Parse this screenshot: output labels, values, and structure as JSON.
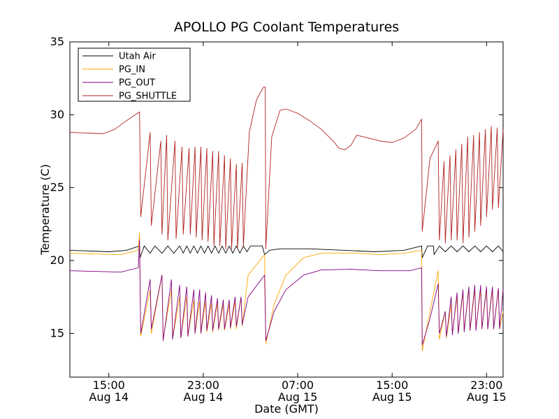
{
  "chart_data": {
    "type": "line",
    "title": "APOLLO PG Coolant Temperatures",
    "xlabel": "Date (GMT)",
    "ylabel": "Temperature (C)",
    "x_units": "hours since Aug 14 00:00 GMT",
    "xlim": [
      11.7,
      48.4
    ],
    "ylim": [
      12,
      35
    ],
    "yticks": [
      15,
      20,
      25,
      30,
      35
    ],
    "xticks": [
      {
        "x": 15,
        "time": "15:00",
        "date": "Aug 14"
      },
      {
        "x": 23,
        "time": "23:00",
        "date": "Aug 14"
      },
      {
        "x": 31,
        "time": "07:00",
        "date": "Aug 15"
      },
      {
        "x": 39,
        "time": "15:00",
        "date": "Aug 15"
      },
      {
        "x": 47,
        "time": "23:00",
        "date": "Aug 15"
      }
    ],
    "grid": false,
    "legend_position": "upper-left",
    "series": [
      {
        "name": "Utah Air",
        "color": "#000000",
        "points": [
          [
            11.7,
            20.7
          ],
          [
            13.5,
            20.65
          ],
          [
            15,
            20.6
          ],
          [
            16.5,
            20.7
          ],
          [
            17.6,
            21.0
          ],
          [
            17.65,
            20.2
          ],
          [
            18.0,
            21.0
          ],
          [
            18.5,
            20.5
          ],
          [
            18.9,
            21.0
          ],
          [
            19.5,
            20.5
          ],
          [
            20.0,
            21.0
          ],
          [
            20.5,
            20.5
          ],
          [
            21.0,
            21.0
          ],
          [
            21.3,
            20.5
          ],
          [
            21.6,
            21.0
          ],
          [
            21.9,
            20.5
          ],
          [
            22.2,
            21.0
          ],
          [
            22.5,
            20.5
          ],
          [
            22.8,
            21.0
          ],
          [
            23.1,
            20.5
          ],
          [
            23.4,
            21.0
          ],
          [
            23.7,
            20.5
          ],
          [
            24.0,
            21.0
          ],
          [
            24.3,
            20.5
          ],
          [
            24.6,
            21.0
          ],
          [
            24.9,
            20.5
          ],
          [
            25.2,
            21.0
          ],
          [
            25.5,
            20.5
          ],
          [
            25.8,
            21.0
          ],
          [
            26.1,
            20.5
          ],
          [
            26.4,
            21.0
          ],
          [
            26.7,
            20.6
          ],
          [
            27.0,
            21.0
          ],
          [
            28.0,
            21.0
          ],
          [
            28.2,
            20.4
          ],
          [
            28.6,
            20.7
          ],
          [
            29.5,
            20.8
          ],
          [
            32.0,
            20.8
          ],
          [
            35.0,
            20.7
          ],
          [
            37.5,
            20.6
          ],
          [
            40.0,
            20.7
          ],
          [
            41.5,
            21.0
          ],
          [
            41.55,
            20.2
          ],
          [
            42.0,
            21.0
          ],
          [
            42.5,
            21.0
          ],
          [
            42.55,
            20.4
          ],
          [
            43.0,
            21.0
          ],
          [
            43.5,
            20.6
          ],
          [
            44.0,
            21.0
          ],
          [
            44.5,
            20.6
          ],
          [
            45.0,
            21.0
          ],
          [
            45.5,
            20.6
          ],
          [
            46.0,
            21.0
          ],
          [
            46.5,
            20.6
          ],
          [
            47.0,
            21.0
          ],
          [
            47.5,
            20.6
          ],
          [
            48.0,
            21.0
          ],
          [
            48.4,
            20.6
          ]
        ]
      },
      {
        "name": "PG_IN",
        "color": "#ffa500",
        "points": [
          [
            11.7,
            20.5
          ],
          [
            14,
            20.45
          ],
          [
            16,
            20.4
          ],
          [
            17.5,
            20.7
          ],
          [
            17.6,
            21.9
          ],
          [
            17.7,
            14.8
          ],
          [
            18.5,
            18.0
          ],
          [
            18.6,
            15.0
          ],
          [
            19.5,
            19.0
          ],
          [
            19.6,
            14.6
          ],
          [
            20.3,
            18.0
          ],
          [
            20.4,
            14.6
          ],
          [
            21.0,
            17.5
          ],
          [
            21.1,
            14.7
          ],
          [
            21.6,
            17.5
          ],
          [
            21.7,
            14.8
          ],
          [
            22.2,
            17.3
          ],
          [
            22.3,
            15.0
          ],
          [
            22.7,
            17.2
          ],
          [
            22.8,
            15.0
          ],
          [
            23.2,
            17.2
          ],
          [
            23.3,
            15.1
          ],
          [
            23.7,
            17.1
          ],
          [
            23.8,
            15.1
          ],
          [
            24.2,
            17.1
          ],
          [
            24.3,
            15.2
          ],
          [
            24.7,
            17.0
          ],
          [
            24.8,
            15.2
          ],
          [
            25.2,
            17.0
          ],
          [
            25.3,
            15.3
          ],
          [
            25.7,
            17.2
          ],
          [
            25.8,
            15.3
          ],
          [
            26.2,
            17.5
          ],
          [
            26.3,
            15.5
          ],
          [
            26.8,
            19.0
          ],
          [
            28.2,
            20.4
          ],
          [
            28.3,
            14.3
          ],
          [
            29.0,
            17.0
          ],
          [
            30.0,
            19.0
          ],
          [
            31.5,
            20.2
          ],
          [
            33.0,
            20.5
          ],
          [
            36.0,
            20.5
          ],
          [
            38.0,
            20.4
          ],
          [
            40.0,
            20.5
          ],
          [
            41.5,
            20.7
          ],
          [
            41.55,
            13.8
          ],
          [
            42.2,
            16.5
          ],
          [
            42.9,
            19.3
          ],
          [
            43.0,
            14.6
          ],
          [
            43.5,
            16.5
          ],
          [
            43.6,
            14.7
          ],
          [
            44.0,
            17.0
          ],
          [
            44.1,
            15.0
          ],
          [
            44.5,
            17.5
          ],
          [
            44.6,
            15.0
          ],
          [
            45.0,
            17.8
          ],
          [
            45.1,
            15.2
          ],
          [
            45.5,
            18.0
          ],
          [
            45.6,
            15.2
          ],
          [
            46.0,
            18.0
          ],
          [
            46.1,
            15.3
          ],
          [
            46.5,
            18.0
          ],
          [
            46.6,
            15.3
          ],
          [
            47.0,
            18.0
          ],
          [
            47.1,
            15.3
          ],
          [
            47.5,
            18.0
          ],
          [
            47.6,
            15.3
          ],
          [
            48.0,
            18.0
          ],
          [
            48.1,
            15.3
          ],
          [
            48.4,
            16.5
          ]
        ]
      },
      {
        "name": "PG_OUT",
        "color": "#800080",
        "points": [
          [
            11.7,
            19.3
          ],
          [
            14,
            19.25
          ],
          [
            16,
            19.2
          ],
          [
            17.5,
            19.5
          ],
          [
            17.6,
            21.4
          ],
          [
            17.7,
            15.0
          ],
          [
            18.5,
            18.7
          ],
          [
            18.6,
            15.3
          ],
          [
            19.5,
            19.0
          ],
          [
            19.6,
            14.5
          ],
          [
            20.3,
            18.7
          ],
          [
            20.4,
            14.6
          ],
          [
            21.0,
            18.3
          ],
          [
            21.1,
            14.7
          ],
          [
            21.6,
            18.2
          ],
          [
            21.7,
            14.8
          ],
          [
            22.2,
            18.0
          ],
          [
            22.3,
            15.0
          ],
          [
            22.7,
            18.0
          ],
          [
            22.8,
            15.0
          ],
          [
            23.2,
            17.8
          ],
          [
            23.3,
            15.2
          ],
          [
            23.7,
            17.6
          ],
          [
            23.8,
            15.2
          ],
          [
            24.2,
            17.4
          ],
          [
            24.3,
            15.3
          ],
          [
            24.7,
            17.3
          ],
          [
            24.8,
            15.3
          ],
          [
            25.2,
            17.3
          ],
          [
            25.3,
            15.4
          ],
          [
            25.7,
            17.5
          ],
          [
            25.8,
            15.5
          ],
          [
            26.2,
            17.5
          ],
          [
            26.3,
            15.6
          ],
          [
            26.8,
            17.5
          ],
          [
            28.2,
            19.0
          ],
          [
            28.3,
            14.5
          ],
          [
            29.0,
            16.5
          ],
          [
            30.0,
            18.0
          ],
          [
            31.5,
            19.0
          ],
          [
            33.0,
            19.35
          ],
          [
            35.5,
            19.4
          ],
          [
            38.0,
            19.3
          ],
          [
            40.5,
            19.3
          ],
          [
            41.5,
            19.5
          ],
          [
            41.55,
            14.2
          ],
          [
            42.2,
            16.0
          ],
          [
            42.9,
            18.4
          ],
          [
            43.0,
            15.0
          ],
          [
            43.5,
            16.5
          ],
          [
            43.6,
            14.8
          ],
          [
            44.0,
            17.5
          ],
          [
            44.1,
            14.9
          ],
          [
            44.5,
            17.8
          ],
          [
            44.6,
            15.0
          ],
          [
            45.0,
            18.0
          ],
          [
            45.1,
            15.1
          ],
          [
            45.5,
            18.2
          ],
          [
            45.6,
            15.2
          ],
          [
            46.0,
            18.3
          ],
          [
            46.1,
            15.2
          ],
          [
            46.5,
            18.3
          ],
          [
            46.6,
            15.3
          ],
          [
            47.0,
            18.2
          ],
          [
            47.1,
            15.3
          ],
          [
            47.5,
            18.2
          ],
          [
            47.6,
            15.3
          ],
          [
            48.0,
            18.1
          ],
          [
            48.1,
            15.3
          ],
          [
            48.4,
            18.0
          ]
        ]
      },
      {
        "name": "PG_SHUTTLE",
        "color": "#b22222",
        "points": [
          [
            11.7,
            28.8
          ],
          [
            13,
            28.75
          ],
          [
            14.5,
            28.7
          ],
          [
            15.5,
            29.0
          ],
          [
            16.5,
            29.6
          ],
          [
            17.6,
            30.2
          ],
          [
            17.7,
            23.0
          ],
          [
            18.5,
            28.8
          ],
          [
            18.6,
            22.4
          ],
          [
            19.4,
            28.2
          ],
          [
            19.5,
            21.8
          ],
          [
            19.9,
            28.6
          ],
          [
            20.0,
            21.4
          ],
          [
            20.6,
            28.2
          ],
          [
            20.7,
            21.5
          ],
          [
            21.2,
            27.8
          ],
          [
            21.3,
            21.8
          ],
          [
            21.8,
            27.7
          ],
          [
            21.9,
            21.8
          ],
          [
            22.3,
            27.8
          ],
          [
            22.4,
            21.6
          ],
          [
            22.8,
            27.8
          ],
          [
            22.9,
            21.4
          ],
          [
            23.3,
            27.7
          ],
          [
            23.4,
            21.3
          ],
          [
            23.8,
            27.5
          ],
          [
            23.9,
            21.0
          ],
          [
            24.3,
            27.5
          ],
          [
            24.4,
            21.0
          ],
          [
            24.8,
            27.2
          ],
          [
            24.9,
            20.8
          ],
          [
            25.3,
            27.0
          ],
          [
            25.4,
            20.8
          ],
          [
            25.8,
            26.6
          ],
          [
            25.9,
            20.8
          ],
          [
            26.3,
            26.7
          ],
          [
            26.4,
            21.0
          ],
          [
            26.9,
            28.8
          ],
          [
            27.5,
            31.0
          ],
          [
            28.1,
            31.9
          ],
          [
            28.25,
            31.9
          ],
          [
            28.3,
            20.8
          ],
          [
            28.8,
            28.5
          ],
          [
            29.5,
            30.3
          ],
          [
            30.0,
            30.4
          ],
          [
            31.0,
            30.1
          ],
          [
            32.0,
            29.6
          ],
          [
            33.0,
            29.0
          ],
          [
            34.0,
            28.2
          ],
          [
            34.5,
            27.7
          ],
          [
            35.0,
            27.6
          ],
          [
            35.5,
            27.9
          ],
          [
            36.0,
            28.6
          ],
          [
            37.0,
            28.4
          ],
          [
            38.0,
            28.2
          ],
          [
            39.0,
            28.1
          ],
          [
            40.0,
            28.4
          ],
          [
            41.0,
            29.0
          ],
          [
            41.5,
            29.7
          ],
          [
            41.55,
            22.0
          ],
          [
            42.2,
            27.0
          ],
          [
            42.9,
            28.2
          ],
          [
            43.0,
            21.4
          ],
          [
            43.4,
            26.8
          ],
          [
            43.5,
            21.2
          ],
          [
            43.9,
            27.2
          ],
          [
            44.0,
            21.4
          ],
          [
            44.4,
            27.6
          ],
          [
            44.5,
            21.4
          ],
          [
            44.9,
            28.0
          ],
          [
            45.0,
            21.2
          ],
          [
            45.4,
            28.5
          ],
          [
            45.5,
            21.6
          ],
          [
            45.9,
            28.6
          ],
          [
            46.0,
            22.0
          ],
          [
            46.4,
            28.8
          ],
          [
            46.5,
            22.4
          ],
          [
            46.9,
            29.0
          ],
          [
            47.0,
            23.0
          ],
          [
            47.4,
            29.2
          ],
          [
            47.5,
            23.5
          ],
          [
            47.9,
            29.1
          ],
          [
            48.0,
            23.6
          ],
          [
            48.4,
            29.0
          ]
        ]
      }
    ]
  }
}
